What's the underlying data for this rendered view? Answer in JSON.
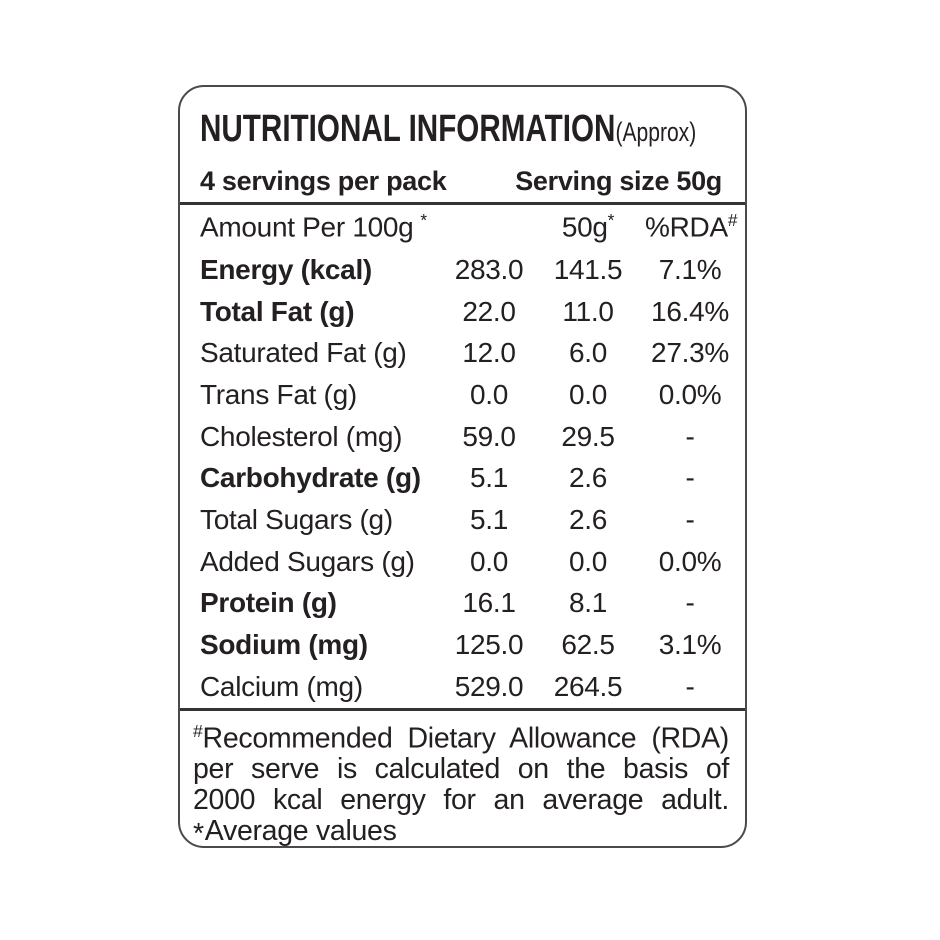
{
  "panel": {
    "title": "NUTRITIONAL INFORMATION",
    "title_suffix": "(Approx)",
    "servings_per_pack": "4 servings per pack",
    "serving_size": "Serving size 50g",
    "columns": {
      "amount_label": "Amount Per 100g",
      "amount_marker": "*",
      "per_serving_label": "50g",
      "per_serving_marker": "*",
      "rda_label": "%RDA",
      "rda_marker": "#"
    },
    "rows": [
      {
        "nutrient": "Energy (kcal)",
        "per_100g": "283.0",
        "per_50g": "141.5",
        "rda_percent": "7.1%"
      },
      {
        "nutrient": "Total Fat (g)",
        "per_100g": "22.0",
        "per_50g": "11.0",
        "rda_percent": "16.4%"
      },
      {
        "nutrient": "Saturated Fat (g)",
        "per_100g": "12.0",
        "per_50g": "6.0",
        "rda_percent": "27.3%"
      },
      {
        "nutrient": "Trans Fat (g)",
        "per_100g": "0.0",
        "per_50g": "0.0",
        "rda_percent": "0.0%"
      },
      {
        "nutrient": "Cholesterol (mg)",
        "per_100g": "59.0",
        "per_50g": "29.5",
        "rda_percent": "-"
      },
      {
        "nutrient": "Carbohydrate (g)",
        "per_100g": "5.1",
        "per_50g": "2.6",
        "rda_percent": "-"
      },
      {
        "nutrient": "Total Sugars (g)",
        "per_100g": "5.1",
        "per_50g": "2.6",
        "rda_percent": "-"
      },
      {
        "nutrient": "Added Sugars (g)",
        "per_100g": "0.0",
        "per_50g": "0.0",
        "rda_percent": "0.0%"
      },
      {
        "nutrient": "Protein (g)",
        "per_100g": "16.1",
        "per_50g": "8.1",
        "rda_percent": "-"
      },
      {
        "nutrient": "Sodium (mg)",
        "per_100g": "125.0",
        "per_50g": "62.5",
        "rda_percent": "3.1%"
      },
      {
        "nutrient": "Calcium (mg)",
        "per_100g": "529.0",
        "per_50g": "264.5",
        "rda_percent": "-"
      }
    ],
    "footnote": {
      "rda_marker": "#",
      "line1": "Recommended Dietary Allowance (RDA)",
      "line2": "per serve is calculated on the basis of",
      "line3": "2000 kcal energy for an average adult.",
      "avg_marker": "*",
      "line4": "Average values"
    },
    "colors": {
      "text": "#242021",
      "border": "#4a4a4a",
      "rule": "#343434",
      "background": "#ffffff"
    }
  }
}
